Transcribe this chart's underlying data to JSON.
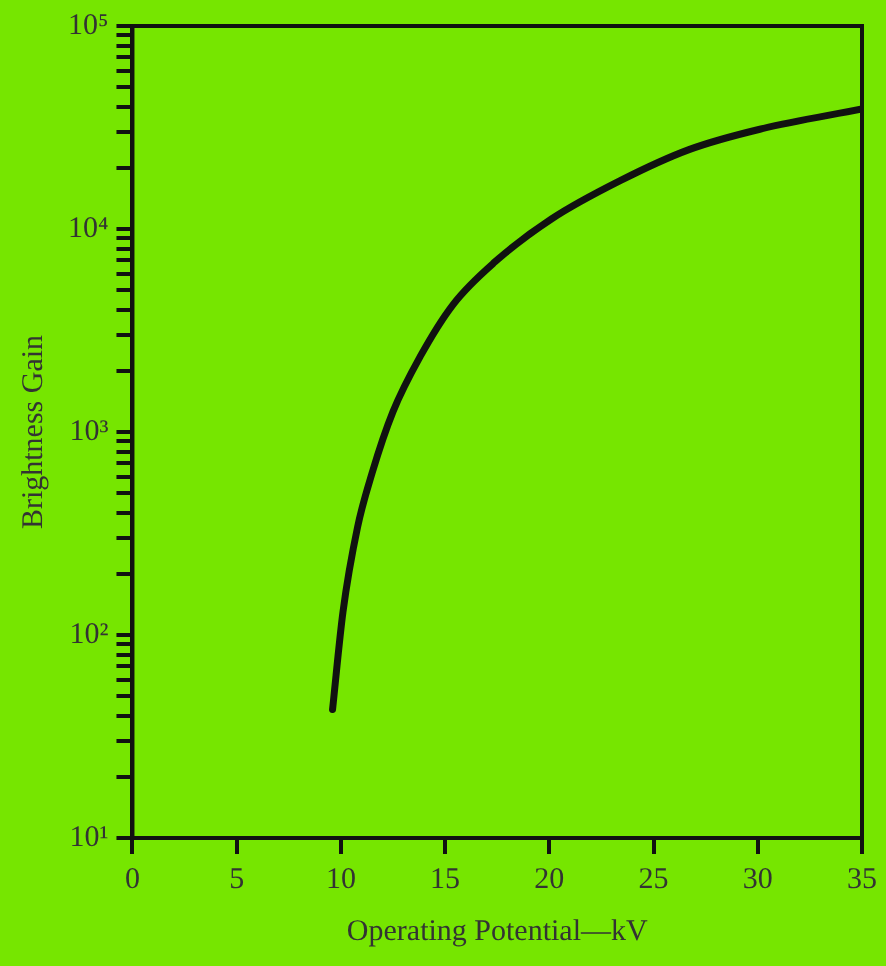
{
  "chart_data": {
    "type": "line",
    "xlabel": "Operating Potential—kV",
    "ylabel": "Brightness Gain",
    "log": "y",
    "grid": false,
    "legend": false,
    "marker": "none",
    "line_style": "solid",
    "xlim": [
      0,
      35
    ],
    "xticks": [
      0,
      5,
      10,
      15,
      20,
      25,
      30,
      35
    ],
    "ylim": [
      10,
      100000
    ],
    "yticks": [
      {
        "value": 10,
        "label": "10¹"
      },
      {
        "value": 20,
        "label": null
      },
      {
        "value": 30,
        "label": null
      },
      {
        "value": 40,
        "label": null
      },
      {
        "value": 50,
        "label": null
      },
      {
        "value": 60,
        "label": null
      },
      {
        "value": 70,
        "label": null
      },
      {
        "value": 80,
        "label": null
      },
      {
        "value": 90,
        "label": null
      },
      {
        "value": 100,
        "label": "10²"
      },
      {
        "value": 200,
        "label": null
      },
      {
        "value": 300,
        "label": null
      },
      {
        "value": 400,
        "label": null
      },
      {
        "value": 500,
        "label": null
      },
      {
        "value": 600,
        "label": null
      },
      {
        "value": 700,
        "label": null
      },
      {
        "value": 800,
        "label": null
      },
      {
        "value": 900,
        "label": null
      },
      {
        "value": 1000,
        "label": "10³"
      },
      {
        "value": 2000,
        "label": null
      },
      {
        "value": 3000,
        "label": null
      },
      {
        "value": 4000,
        "label": null
      },
      {
        "value": 5000,
        "label": null
      },
      {
        "value": 6000,
        "label": null
      },
      {
        "value": 7000,
        "label": null
      },
      {
        "value": 8000,
        "label": null
      },
      {
        "value": 9000,
        "label": null
      },
      {
        "value": 10000,
        "label": "10⁴"
      },
      {
        "value": 20000,
        "label": null
      },
      {
        "value": 30000,
        "label": null
      },
      {
        "value": 40000,
        "label": null
      },
      {
        "value": 50000,
        "label": null
      },
      {
        "value": 60000,
        "label": null
      },
      {
        "value": 70000,
        "label": null
      },
      {
        "value": 80000,
        "label": null
      },
      {
        "value": 90000,
        "label": null
      },
      {
        "value": 100000,
        "label": "10⁵"
      }
    ],
    "series": [
      {
        "color": "#111111",
        "x": [
          9.6,
          10.1,
          10.8,
          11.5,
          12.5,
          13.8,
          15.4,
          17.4,
          20.1,
          23.4,
          26.7,
          30.1,
          35
        ],
        "values": [
          43,
          130,
          340,
          630,
          1260,
          2350,
          4270,
          6900,
          11200,
          17300,
          24600,
          31000,
          39000
        ]
      }
    ]
  }
}
